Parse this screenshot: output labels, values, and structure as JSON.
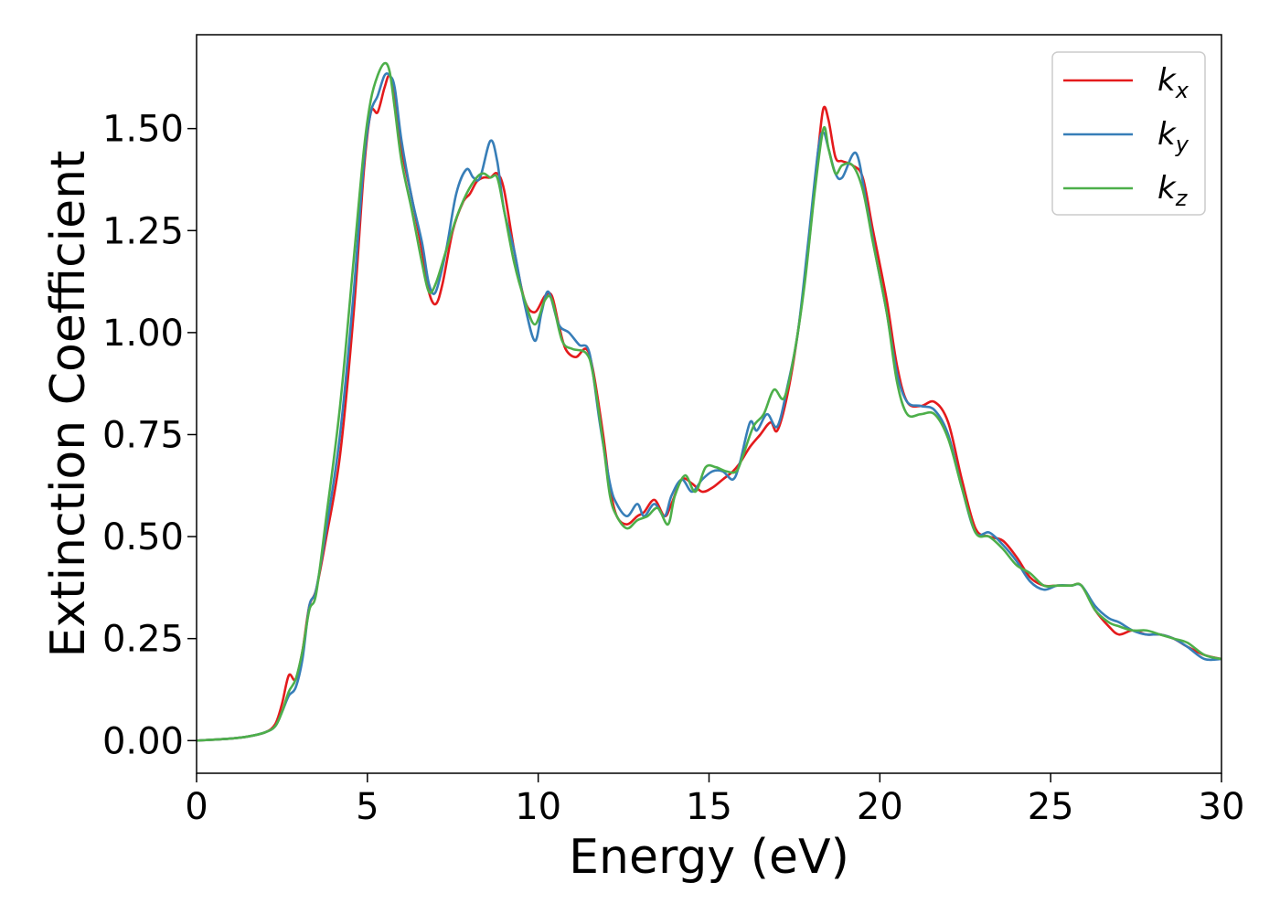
{
  "chart_data": {
    "type": "line",
    "title": "",
    "xlabel": "Energy (eV)",
    "ylabel": "Extinction Coefficient",
    "xlim": [
      0,
      30
    ],
    "ylim": [
      -0.08,
      1.73
    ],
    "grid": false,
    "legend_position": "top-right",
    "x_ticks": [
      0,
      5,
      10,
      15,
      20,
      25,
      30
    ],
    "x_tick_labels": [
      "0",
      "5",
      "10",
      "15",
      "20",
      "25",
      "30"
    ],
    "y_ticks": [
      0.0,
      0.25,
      0.5,
      0.75,
      1.0,
      1.25,
      1.5
    ],
    "y_tick_labels": [
      "0.00",
      "0.25",
      "0.50",
      "0.75",
      "1.00",
      "1.25",
      "1.50"
    ],
    "series": [
      {
        "name": "k",
        "subscript": "x",
        "color": "#e41a1c",
        "points": [
          [
            0,
            0
          ],
          [
            1,
            0.005
          ],
          [
            1.5,
            0.01
          ],
          [
            2,
            0.02
          ],
          [
            2.3,
            0.04
          ],
          [
            2.5,
            0.09
          ],
          [
            2.7,
            0.16
          ],
          [
            2.9,
            0.15
          ],
          [
            3.1,
            0.22
          ],
          [
            3.3,
            0.33
          ],
          [
            3.5,
            0.37
          ],
          [
            3.8,
            0.5
          ],
          [
            4.2,
            0.7
          ],
          [
            4.6,
            1.05
          ],
          [
            4.9,
            1.4
          ],
          [
            5.1,
            1.54
          ],
          [
            5.3,
            1.54
          ],
          [
            5.5,
            1.6
          ],
          [
            5.65,
            1.63
          ],
          [
            5.8,
            1.58
          ],
          [
            6.0,
            1.45
          ],
          [
            6.3,
            1.33
          ],
          [
            6.6,
            1.2
          ],
          [
            6.8,
            1.1
          ],
          [
            7.0,
            1.07
          ],
          [
            7.2,
            1.12
          ],
          [
            7.5,
            1.25
          ],
          [
            7.8,
            1.32
          ],
          [
            8.0,
            1.34
          ],
          [
            8.2,
            1.37
          ],
          [
            8.4,
            1.38
          ],
          [
            8.6,
            1.38
          ],
          [
            8.8,
            1.39
          ],
          [
            9.0,
            1.35
          ],
          [
            9.3,
            1.2
          ],
          [
            9.6,
            1.08
          ],
          [
            9.9,
            1.05
          ],
          [
            10.2,
            1.09
          ],
          [
            10.4,
            1.09
          ],
          [
            10.6,
            1.02
          ],
          [
            10.8,
            0.96
          ],
          [
            11.1,
            0.94
          ],
          [
            11.4,
            0.96
          ],
          [
            11.6,
            0.91
          ],
          [
            11.9,
            0.75
          ],
          [
            12.1,
            0.62
          ],
          [
            12.3,
            0.55
          ],
          [
            12.6,
            0.53
          ],
          [
            12.9,
            0.55
          ],
          [
            13.1,
            0.56
          ],
          [
            13.4,
            0.59
          ],
          [
            13.7,
            0.55
          ],
          [
            13.9,
            0.58
          ],
          [
            14.2,
            0.64
          ],
          [
            14.5,
            0.63
          ],
          [
            14.8,
            0.61
          ],
          [
            15.1,
            0.62
          ],
          [
            15.4,
            0.64
          ],
          [
            15.7,
            0.66
          ],
          [
            15.9,
            0.68
          ],
          [
            16.2,
            0.72
          ],
          [
            16.5,
            0.75
          ],
          [
            16.8,
            0.78
          ],
          [
            17.0,
            0.76
          ],
          [
            17.3,
            0.85
          ],
          [
            17.6,
            1.0
          ],
          [
            17.9,
            1.2
          ],
          [
            18.2,
            1.45
          ],
          [
            18.35,
            1.55
          ],
          [
            18.5,
            1.52
          ],
          [
            18.7,
            1.43
          ],
          [
            18.9,
            1.42
          ],
          [
            19.2,
            1.41
          ],
          [
            19.5,
            1.38
          ],
          [
            19.8,
            1.25
          ],
          [
            20.2,
            1.08
          ],
          [
            20.5,
            0.92
          ],
          [
            20.8,
            0.83
          ],
          [
            21.2,
            0.82
          ],
          [
            21.6,
            0.83
          ],
          [
            22.0,
            0.78
          ],
          [
            22.4,
            0.64
          ],
          [
            22.8,
            0.52
          ],
          [
            23.2,
            0.5
          ],
          [
            23.6,
            0.49
          ],
          [
            24.0,
            0.45
          ],
          [
            24.4,
            0.4
          ],
          [
            24.8,
            0.38
          ],
          [
            25.2,
            0.38
          ],
          [
            25.6,
            0.38
          ],
          [
            25.9,
            0.38
          ],
          [
            26.3,
            0.32
          ],
          [
            26.7,
            0.28
          ],
          [
            27.0,
            0.26
          ],
          [
            27.4,
            0.27
          ],
          [
            27.8,
            0.26
          ],
          [
            28.2,
            0.26
          ],
          [
            28.6,
            0.25
          ],
          [
            29.0,
            0.23
          ],
          [
            29.5,
            0.21
          ],
          [
            30,
            0.2
          ]
        ]
      },
      {
        "name": "k",
        "subscript": "y",
        "color": "#377eb8",
        "points": [
          [
            0,
            0
          ],
          [
            1,
            0.005
          ],
          [
            1.5,
            0.01
          ],
          [
            2,
            0.02
          ],
          [
            2.3,
            0.035
          ],
          [
            2.5,
            0.07
          ],
          [
            2.7,
            0.11
          ],
          [
            2.9,
            0.13
          ],
          [
            3.1,
            0.2
          ],
          [
            3.3,
            0.33
          ],
          [
            3.5,
            0.37
          ],
          [
            3.8,
            0.52
          ],
          [
            4.2,
            0.75
          ],
          [
            4.6,
            1.1
          ],
          [
            4.9,
            1.42
          ],
          [
            5.1,
            1.54
          ],
          [
            5.3,
            1.58
          ],
          [
            5.5,
            1.63
          ],
          [
            5.65,
            1.63
          ],
          [
            5.8,
            1.6
          ],
          [
            6.0,
            1.47
          ],
          [
            6.3,
            1.33
          ],
          [
            6.6,
            1.22
          ],
          [
            6.8,
            1.12
          ],
          [
            7.0,
            1.1
          ],
          [
            7.3,
            1.2
          ],
          [
            7.6,
            1.34
          ],
          [
            7.9,
            1.4
          ],
          [
            8.1,
            1.38
          ],
          [
            8.3,
            1.38
          ],
          [
            8.6,
            1.47
          ],
          [
            8.8,
            1.42
          ],
          [
            9.0,
            1.3
          ],
          [
            9.3,
            1.2
          ],
          [
            9.6,
            1.07
          ],
          [
            9.9,
            0.98
          ],
          [
            10.1,
            1.05
          ],
          [
            10.3,
            1.1
          ],
          [
            10.6,
            1.02
          ],
          [
            10.9,
            1.0
          ],
          [
            11.2,
            0.97
          ],
          [
            11.5,
            0.95
          ],
          [
            11.8,
            0.78
          ],
          [
            12.1,
            0.63
          ],
          [
            12.3,
            0.58
          ],
          [
            12.6,
            0.55
          ],
          [
            12.9,
            0.58
          ],
          [
            13.1,
            0.55
          ],
          [
            13.4,
            0.58
          ],
          [
            13.7,
            0.55
          ],
          [
            13.9,
            0.6
          ],
          [
            14.2,
            0.64
          ],
          [
            14.5,
            0.61
          ],
          [
            14.8,
            0.64
          ],
          [
            15.1,
            0.66
          ],
          [
            15.4,
            0.66
          ],
          [
            15.7,
            0.64
          ],
          [
            15.9,
            0.68
          ],
          [
            16.2,
            0.78
          ],
          [
            16.4,
            0.76
          ],
          [
            16.7,
            0.8
          ],
          [
            17.0,
            0.77
          ],
          [
            17.3,
            0.87
          ],
          [
            17.6,
            1.0
          ],
          [
            17.9,
            1.22
          ],
          [
            18.2,
            1.45
          ],
          [
            18.35,
            1.49
          ],
          [
            18.5,
            1.45
          ],
          [
            18.7,
            1.39
          ],
          [
            18.9,
            1.38
          ],
          [
            19.3,
            1.44
          ],
          [
            19.6,
            1.32
          ],
          [
            19.9,
            1.18
          ],
          [
            20.2,
            1.05
          ],
          [
            20.5,
            0.9
          ],
          [
            20.8,
            0.83
          ],
          [
            21.2,
            0.82
          ],
          [
            21.6,
            0.81
          ],
          [
            22.0,
            0.75
          ],
          [
            22.4,
            0.62
          ],
          [
            22.8,
            0.51
          ],
          [
            23.2,
            0.51
          ],
          [
            23.6,
            0.48
          ],
          [
            24.0,
            0.44
          ],
          [
            24.4,
            0.39
          ],
          [
            24.8,
            0.37
          ],
          [
            25.2,
            0.38
          ],
          [
            25.6,
            0.38
          ],
          [
            25.9,
            0.38
          ],
          [
            26.3,
            0.33
          ],
          [
            26.7,
            0.3
          ],
          [
            27.0,
            0.29
          ],
          [
            27.4,
            0.27
          ],
          [
            27.8,
            0.26
          ],
          [
            28.2,
            0.26
          ],
          [
            28.6,
            0.25
          ],
          [
            29.0,
            0.23
          ],
          [
            29.5,
            0.2
          ],
          [
            30,
            0.2
          ]
        ]
      },
      {
        "name": "k",
        "subscript": "z",
        "color": "#4daf4a",
        "points": [
          [
            0,
            0
          ],
          [
            1,
            0.005
          ],
          [
            1.5,
            0.01
          ],
          [
            2,
            0.02
          ],
          [
            2.3,
            0.035
          ],
          [
            2.5,
            0.07
          ],
          [
            2.7,
            0.12
          ],
          [
            2.9,
            0.15
          ],
          [
            3.1,
            0.22
          ],
          [
            3.3,
            0.32
          ],
          [
            3.5,
            0.36
          ],
          [
            3.8,
            0.55
          ],
          [
            4.2,
            0.82
          ],
          [
            4.6,
            1.18
          ],
          [
            4.9,
            1.45
          ],
          [
            5.1,
            1.57
          ],
          [
            5.3,
            1.63
          ],
          [
            5.5,
            1.66
          ],
          [
            5.65,
            1.64
          ],
          [
            5.8,
            1.55
          ],
          [
            6.0,
            1.42
          ],
          [
            6.3,
            1.3
          ],
          [
            6.6,
            1.17
          ],
          [
            6.8,
            1.1
          ],
          [
            7.0,
            1.12
          ],
          [
            7.3,
            1.2
          ],
          [
            7.6,
            1.28
          ],
          [
            7.9,
            1.34
          ],
          [
            8.2,
            1.38
          ],
          [
            8.4,
            1.39
          ],
          [
            8.6,
            1.38
          ],
          [
            8.8,
            1.38
          ],
          [
            9.0,
            1.3
          ],
          [
            9.3,
            1.17
          ],
          [
            9.6,
            1.08
          ],
          [
            9.9,
            1.02
          ],
          [
            10.2,
            1.08
          ],
          [
            10.4,
            1.08
          ],
          [
            10.7,
            0.98
          ],
          [
            11.0,
            0.96
          ],
          [
            11.4,
            0.95
          ],
          [
            11.6,
            0.9
          ],
          [
            11.9,
            0.73
          ],
          [
            12.1,
            0.6
          ],
          [
            12.3,
            0.55
          ],
          [
            12.6,
            0.52
          ],
          [
            12.9,
            0.54
          ],
          [
            13.2,
            0.55
          ],
          [
            13.5,
            0.57
          ],
          [
            13.8,
            0.53
          ],
          [
            14.0,
            0.6
          ],
          [
            14.3,
            0.65
          ],
          [
            14.6,
            0.61
          ],
          [
            14.9,
            0.67
          ],
          [
            15.2,
            0.67
          ],
          [
            15.5,
            0.66
          ],
          [
            15.8,
            0.66
          ],
          [
            16.0,
            0.7
          ],
          [
            16.3,
            0.77
          ],
          [
            16.6,
            0.8
          ],
          [
            16.9,
            0.86
          ],
          [
            17.2,
            0.84
          ],
          [
            17.5,
            0.95
          ],
          [
            17.8,
            1.12
          ],
          [
            18.1,
            1.35
          ],
          [
            18.35,
            1.5
          ],
          [
            18.5,
            1.45
          ],
          [
            18.7,
            1.39
          ],
          [
            18.9,
            1.41
          ],
          [
            19.2,
            1.41
          ],
          [
            19.5,
            1.35
          ],
          [
            19.8,
            1.22
          ],
          [
            20.2,
            1.05
          ],
          [
            20.5,
            0.88
          ],
          [
            20.8,
            0.8
          ],
          [
            21.2,
            0.8
          ],
          [
            21.6,
            0.8
          ],
          [
            22.0,
            0.74
          ],
          [
            22.4,
            0.62
          ],
          [
            22.8,
            0.51
          ],
          [
            23.2,
            0.5
          ],
          [
            23.6,
            0.47
          ],
          [
            24.0,
            0.43
          ],
          [
            24.4,
            0.41
          ],
          [
            24.8,
            0.38
          ],
          [
            25.2,
            0.38
          ],
          [
            25.6,
            0.38
          ],
          [
            25.9,
            0.38
          ],
          [
            26.3,
            0.32
          ],
          [
            26.7,
            0.29
          ],
          [
            27.0,
            0.28
          ],
          [
            27.4,
            0.27
          ],
          [
            27.8,
            0.27
          ],
          [
            28.2,
            0.26
          ],
          [
            28.6,
            0.25
          ],
          [
            29.0,
            0.24
          ],
          [
            29.5,
            0.21
          ],
          [
            30,
            0.2
          ]
        ]
      }
    ]
  }
}
